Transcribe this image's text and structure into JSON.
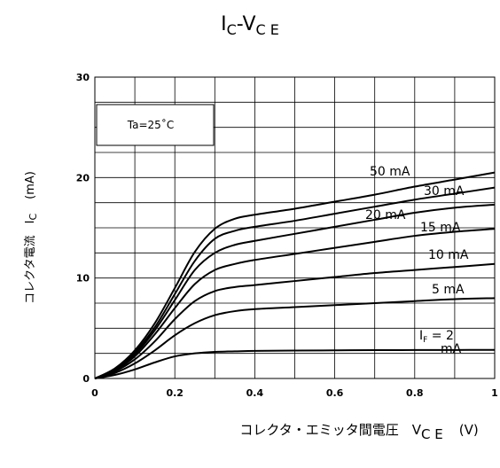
{
  "chart_data": {
    "type": "line",
    "title": {
      "main_a": "I",
      "sub_a": "C",
      "sep": "-",
      "main_b": "V",
      "sub_b": "C E"
    },
    "xlabel": {
      "text": "コレクタ・エミッタ間電圧　V",
      "sub": "C E",
      "unit": "(V)"
    },
    "ylabel": {
      "text": "コレクタ電流　I",
      "sub": "C",
      "unit": "(mA)"
    },
    "xlim": [
      0,
      1
    ],
    "ylim": [
      0,
      30
    ],
    "xticks": [
      "0",
      "0.2",
      "0.4",
      "0.6",
      "0.8",
      "1"
    ],
    "yticks": [
      "0",
      "10",
      "20",
      "30"
    ],
    "xtick_values": [
      0,
      0.2,
      0.4,
      0.6,
      0.8,
      1
    ],
    "ytick_values": [
      0,
      10,
      20,
      30
    ],
    "grid": true,
    "annotation": "Ta=25˚C",
    "series": [
      {
        "name": "50 mA",
        "x": [
          0,
          0.05,
          0.1,
          0.15,
          0.2,
          0.25,
          0.3,
          0.35,
          0.4,
          0.5,
          0.6,
          0.7,
          0.8,
          0.9,
          1.0
        ],
        "y": [
          0,
          1.0,
          2.8,
          5.5,
          9.0,
          12.6,
          14.9,
          15.9,
          16.3,
          16.9,
          17.6,
          18.3,
          19.1,
          19.8,
          20.5
        ]
      },
      {
        "name": "30 mA",
        "x": [
          0,
          0.05,
          0.1,
          0.15,
          0.2,
          0.25,
          0.3,
          0.35,
          0.4,
          0.5,
          0.6,
          0.7,
          0.8,
          0.9,
          1.0
        ],
        "y": [
          0,
          0.9,
          2.6,
          5.1,
          8.4,
          11.7,
          13.9,
          14.7,
          15.1,
          15.7,
          16.4,
          17.1,
          17.8,
          18.4,
          19.0
        ]
      },
      {
        "name": "20 mA",
        "x": [
          0,
          0.05,
          0.1,
          0.15,
          0.2,
          0.25,
          0.3,
          0.35,
          0.4,
          0.5,
          0.6,
          0.7,
          0.8,
          0.9,
          1.0
        ],
        "y": [
          0,
          0.85,
          2.4,
          4.8,
          7.8,
          10.8,
          12.5,
          13.3,
          13.7,
          14.4,
          15.1,
          15.8,
          16.5,
          17.0,
          17.3
        ]
      },
      {
        "name": "15 mA",
        "x": [
          0,
          0.05,
          0.1,
          0.15,
          0.2,
          0.25,
          0.3,
          0.35,
          0.4,
          0.5,
          0.6,
          0.7,
          0.8,
          0.9,
          1.0
        ],
        "y": [
          0,
          0.8,
          2.2,
          4.4,
          7.0,
          9.4,
          10.8,
          11.4,
          11.8,
          12.4,
          13.0,
          13.6,
          14.2,
          14.6,
          14.9
        ]
      },
      {
        "name": "10 mA",
        "x": [
          0,
          0.05,
          0.1,
          0.15,
          0.2,
          0.25,
          0.3,
          0.35,
          0.4,
          0.5,
          0.6,
          0.7,
          0.8,
          0.9,
          1.0
        ],
        "y": [
          0,
          0.7,
          1.9,
          3.7,
          5.9,
          7.7,
          8.7,
          9.1,
          9.3,
          9.7,
          10.1,
          10.5,
          10.8,
          11.1,
          11.4
        ]
      },
      {
        "name": "5 mA",
        "x": [
          0,
          0.05,
          0.1,
          0.15,
          0.2,
          0.25,
          0.3,
          0.35,
          0.4,
          0.5,
          0.6,
          0.7,
          0.8,
          0.9,
          1.0
        ],
        "y": [
          0,
          0.55,
          1.5,
          2.8,
          4.3,
          5.5,
          6.3,
          6.7,
          6.9,
          7.1,
          7.3,
          7.5,
          7.7,
          7.9,
          8.0
        ]
      },
      {
        "name": "I",
        "name_sub": "F",
        "name_rest": " = 2",
        "name_cut": "mA",
        "x": [
          0,
          0.05,
          0.1,
          0.15,
          0.2,
          0.25,
          0.3,
          0.35,
          0.4,
          0.5,
          0.6,
          0.7,
          0.8,
          0.9,
          1.0
        ],
        "y": [
          0,
          0.35,
          0.9,
          1.6,
          2.2,
          2.5,
          2.65,
          2.7,
          2.75,
          2.78,
          2.8,
          2.82,
          2.83,
          2.84,
          2.85
        ]
      }
    ]
  }
}
